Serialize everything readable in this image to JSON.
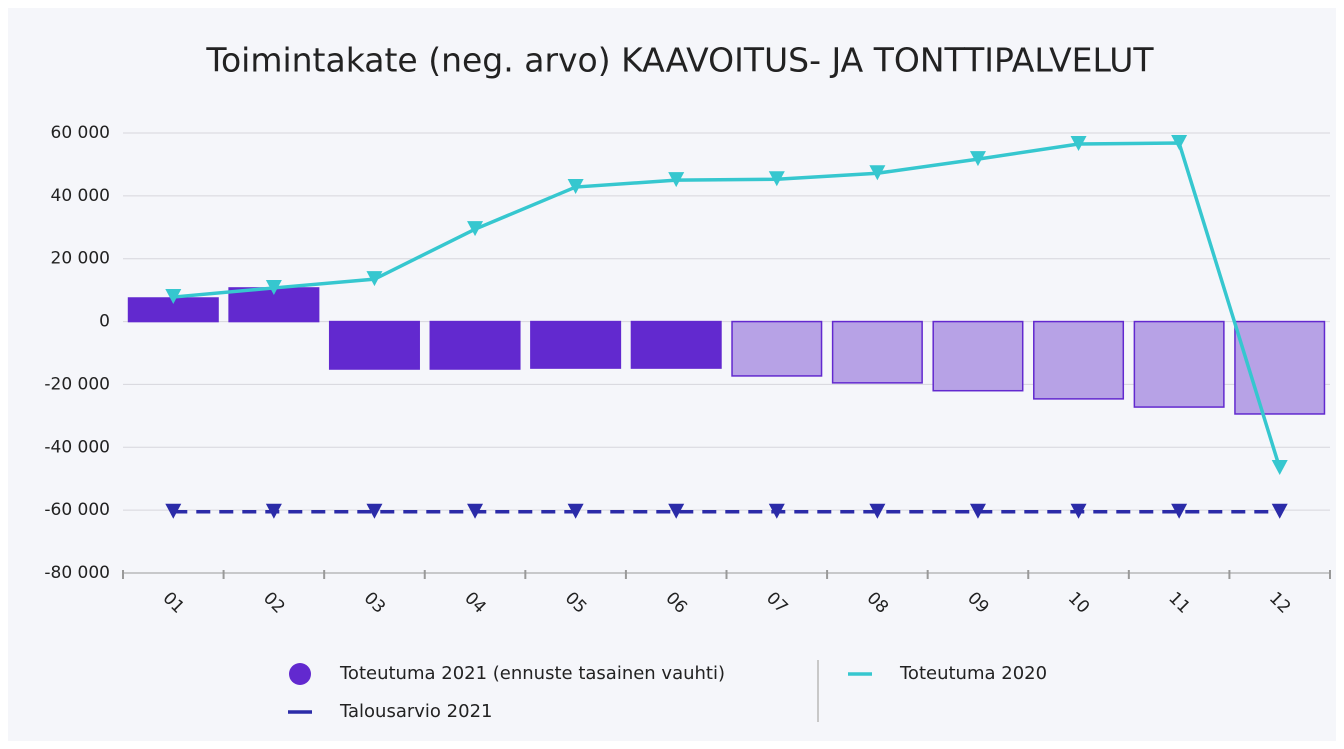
{
  "chart_data": {
    "type": "bar",
    "title": "Toimintakate (neg. arvo) KAAVOITUS- JA TONTTIPALVELUT",
    "categories": [
      "01",
      "02",
      "03",
      "04",
      "05",
      "06",
      "07",
      "08",
      "09",
      "10",
      "11",
      "12"
    ],
    "series": [
      {
        "name": "Toteutuma 2021 (ennuste tasainen vauhti)",
        "type": "bar",
        "color": "#6229cf",
        "colors": [
          "#6229cf",
          "#6229cf",
          "#6229cf",
          "#6229cf",
          "#6229cf",
          "#6229cf",
          "#b7a2e6",
          "#b7a2e6",
          "#b7a2e6",
          "#b7a2e6",
          "#b7a2e6",
          "#b7a2e6"
        ],
        "values": [
          7500,
          10700,
          -15100,
          -15100,
          -14800,
          -14800,
          -17300,
          -19500,
          -22000,
          -24600,
          -27200,
          -29400
        ]
      },
      {
        "name": "Talousarvio 2021",
        "type": "line",
        "line_style": "dashed",
        "color": "#2b2ba8",
        "values": [
          -60500,
          -60500,
          -60500,
          -60500,
          -60500,
          -60500,
          -60500,
          -60500,
          -60500,
          -60500,
          -60500,
          -60500
        ]
      },
      {
        "name": "Toteutuma 2020",
        "type": "line",
        "line_style": "solid",
        "color": "#36c7cf",
        "values": [
          7800,
          10700,
          13500,
          29400,
          42800,
          45000,
          45300,
          47200,
          51700,
          56500,
          56800,
          -46600
        ]
      }
    ],
    "ylim": [
      -80000,
      60000
    ],
    "yticks": [
      {
        "value": -80000,
        "label": "-80 000"
      },
      {
        "value": -60000,
        "label": "-60 000"
      },
      {
        "value": -40000,
        "label": "-40 000"
      },
      {
        "value": -20000,
        "label": "-20 000"
      },
      0,
      {
        "value": 20000,
        "label": "20 000"
      },
      {
        "value": 40000,
        "label": "40 000"
      },
      {
        "value": 60000,
        "label": "60 000"
      }
    ],
    "grid": true,
    "legend": "bottom"
  }
}
